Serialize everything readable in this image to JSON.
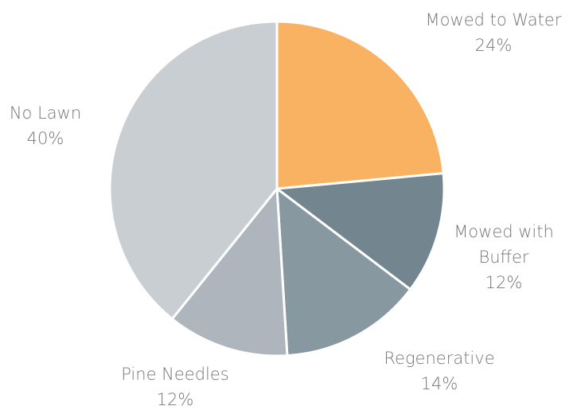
{
  "chart_data": {
    "type": "pie",
    "categories": [
      "Mowed to Water",
      "Mowed with Buffer",
      "Regenerative",
      "Pine Needles",
      "No Lawn"
    ],
    "values": [
      24,
      12,
      14,
      12,
      40
    ],
    "value_labels": [
      "24%",
      "12%",
      "14%",
      "12%",
      "40%"
    ],
    "colors": [
      "#f9b262",
      "#738690",
      "#8798a1",
      "#aeb5bc",
      "#c9ced2"
    ]
  }
}
